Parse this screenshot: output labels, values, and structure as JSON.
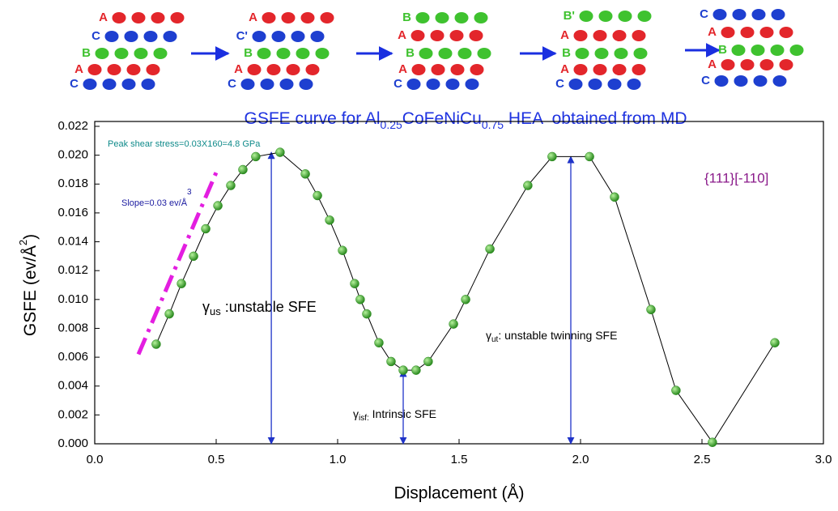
{
  "stacking_diagram": {
    "stacks": [
      {
        "rows": [
          {
            "label": "A",
            "color": "#e3262b"
          },
          {
            "label": "C",
            "color": "#1e3fd0"
          },
          {
            "label": "B",
            "color": "#3fc22f"
          },
          {
            "label": "A",
            "color": "#e3262b"
          },
          {
            "label": "C",
            "color": "#1e3fd0"
          }
        ]
      },
      {
        "rows": [
          {
            "label": "A",
            "color": "#e3262b"
          },
          {
            "label": "C'",
            "color": "#1e3fd0"
          },
          {
            "label": "B",
            "color": "#3fc22f"
          },
          {
            "label": "A",
            "color": "#e3262b"
          },
          {
            "label": "C",
            "color": "#1e3fd0"
          }
        ]
      },
      {
        "rows": [
          {
            "label": "B",
            "color": "#3fc22f"
          },
          {
            "label": "A",
            "color": "#e3262b"
          },
          {
            "label": "B",
            "color": "#3fc22f"
          },
          {
            "label": "A",
            "color": "#e3262b"
          },
          {
            "label": "C",
            "color": "#1e3fd0"
          }
        ]
      },
      {
        "rows": [
          {
            "label": "B'",
            "color": "#3fc22f"
          },
          {
            "label": "A",
            "color": "#e3262b"
          },
          {
            "label": "B",
            "color": "#3fc22f"
          },
          {
            "label": "A",
            "color": "#e3262b"
          },
          {
            "label": "C",
            "color": "#1e3fd0"
          }
        ]
      },
      {
        "rows": [
          {
            "label": "C",
            "color": "#1e3fd0"
          },
          {
            "label": "A",
            "color": "#e3262b"
          },
          {
            "label": "B",
            "color": "#3fc22f"
          },
          {
            "label": "A",
            "color": "#e3262b"
          },
          {
            "label": "C",
            "color": "#1e3fd0"
          }
        ]
      }
    ]
  },
  "chart_data": {
    "type": "line",
    "title_parts": [
      "GSFE curve for Al",
      "0.25",
      "CoFeNiCu",
      "0.75",
      " HEA  obtained from MD"
    ],
    "xlabel": "Displacement (Å)",
    "ylabel_parts": [
      "GSFE (ev/Å",
      "2",
      ")"
    ],
    "xlim": [
      0,
      3
    ],
    "ylim": [
      0,
      0.022
    ],
    "xticks": [
      {
        "value": 0,
        "label": "0.0"
      },
      0.5,
      {
        "value": 1,
        "label": "1.0"
      },
      1.5,
      {
        "value": 2,
        "label": "2.0"
      },
      2.5,
      {
        "value": 3,
        "label": "3.0"
      }
    ],
    "yticks": [
      {
        "value": 0,
        "label": "0.000"
      },
      {
        "value": 0.002,
        "label": "0.002"
      },
      {
        "value": 0.004,
        "label": "0.004"
      },
      {
        "value": 0.006,
        "label": "0.006"
      },
      {
        "value": 0.008,
        "label": "0.008"
      },
      {
        "value": 0.01,
        "label": "0.010"
      },
      {
        "value": 0.012,
        "label": "0.012"
      },
      {
        "value": 0.014,
        "label": "0.014"
      },
      {
        "value": 0.016,
        "label": "0.016"
      },
      {
        "value": 0.018,
        "label": "0.018"
      },
      {
        "value": 0.02,
        "label": "0.020"
      },
      {
        "value": 0.022,
        "label": "0.022"
      }
    ],
    "series": [
      {
        "color": "#000000",
        "marker_color": "#2a8a1f",
        "x": [
          0.253,
          0.307,
          0.357,
          0.407,
          0.457,
          0.507,
          0.56,
          0.61,
          0.663,
          0.763,
          0.867,
          0.917,
          0.967,
          1.02,
          1.07,
          1.093,
          1.12,
          1.17,
          1.22,
          1.27,
          1.323,
          1.373,
          1.477,
          1.527,
          1.627,
          1.783,
          1.883,
          2.037,
          2.14,
          2.29,
          2.393,
          2.543,
          2.8
        ],
        "values": [
          0.0069,
          0.009,
          0.0111,
          0.013,
          0.0149,
          0.0165,
          0.0179,
          0.019,
          0.0199,
          0.0202,
          0.0187,
          0.0172,
          0.0155,
          0.0134,
          0.0111,
          0.01,
          0.009,
          0.007,
          0.0057,
          0.0051,
          0.0051,
          0.0057,
          0.0083,
          0.01,
          0.0135,
          0.0179,
          0.0199,
          0.0199,
          0.0171,
          0.0093,
          0.0037,
          0.0001,
          0.007
        ]
      }
    ],
    "slope_line": {
      "color": "#e31ee0",
      "x": [
        0.18,
        0.5
      ],
      "values": [
        0.0062,
        0.0188
      ]
    },
    "arrows": {
      "color": "#1f33c8",
      "x": [
        0.727,
        1.27,
        1.96
      ],
      "values": [
        0.0202,
        0.0051,
        0.0199
      ]
    },
    "annotations": {
      "peak": "Peak shear stress=0.03X160=4.8 GPa",
      "slope": "Slope=0.03 ev/Å",
      "slope_sup": "3",
      "us_sym": "γ",
      "us_sub": "us",
      "us_text": " :unstable SFE",
      "isf_sym": "γ",
      "isf_sub": "isf:",
      "isf_text": " Intrinsic SFE",
      "ut_sym": "γ",
      "ut_sub": "ut",
      "ut_text": ": unstable twinning SFE",
      "direction": "{111}[-110]"
    }
  }
}
